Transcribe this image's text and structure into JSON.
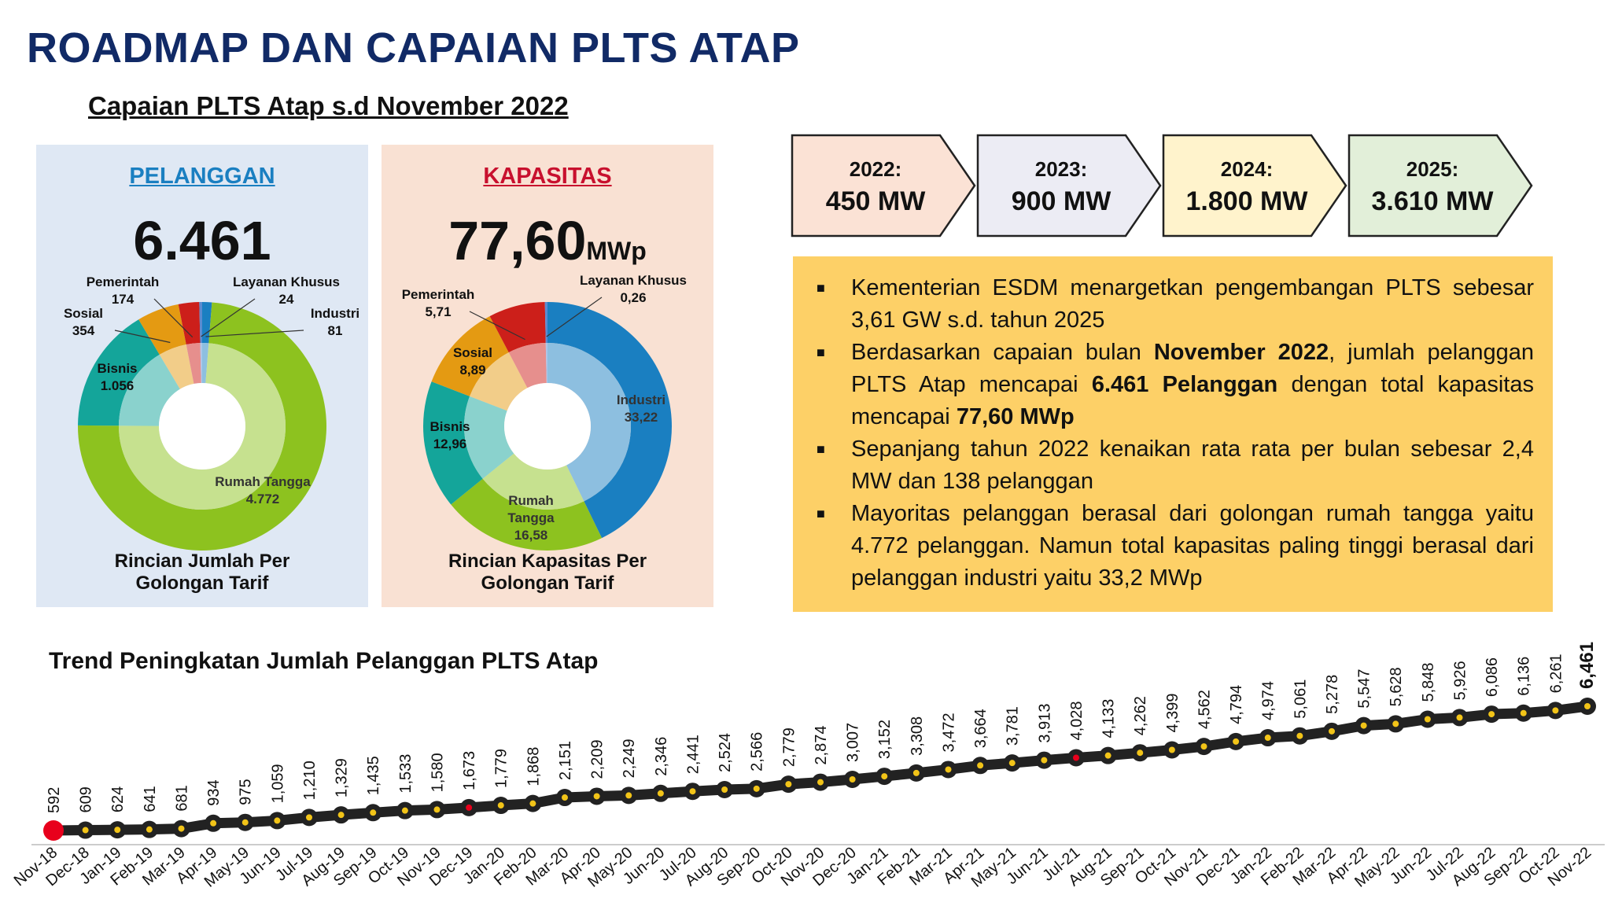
{
  "title": "ROADMAP DAN CAPAIAN PLTS ATAP",
  "subtitle": "Capaian PLTS Atap s.d November 2022",
  "colors": {
    "title": "#112a66",
    "pelanggan_head": "#1a7fc1",
    "kapasitas_head": "#c8102e",
    "industri": "#1a7fc1",
    "rumah_tangga": "#8dc21f",
    "bisnis": "#14a59a",
    "sosial": "#e49a12",
    "pemerintah": "#cc1f1a",
    "layanan_khusus": "#5b8bd0",
    "notes_bg": "#fdd067"
  },
  "panels": {
    "pelanggan": {
      "heading": "PELANGGAN",
      "total": "6.461",
      "caption_line1": "Rincian Jumlah Per",
      "caption_line2": "Golongan Tarif"
    },
    "kapasitas": {
      "heading": "KAPASITAS",
      "total": "77,60",
      "unit": "MWp",
      "caption_line1": "Rincian Kapasitas Per",
      "caption_line2": "Golongan Tarif"
    }
  },
  "roadmap": [
    {
      "year": "2022:",
      "value": "450 MW",
      "color": "#fbe2d5"
    },
    {
      "year": "2023:",
      "value": "900 MW",
      "color": "#ececf4"
    },
    {
      "year": "2024:",
      "value": "1.800 MW",
      "color": "#fff3cc"
    },
    {
      "year": "2025:",
      "value": "3.610 MW",
      "color": "#e2efd9"
    }
  ],
  "notes": [
    {
      "parts": [
        {
          "t": "Kementerian ESDM menargetkan pengembangan PLTS sebesar 3,61 GW s.d. tahun 2025",
          "b": false
        }
      ]
    },
    {
      "parts": [
        {
          "t": "Berdasarkan capaian bulan ",
          "b": false
        },
        {
          "t": "November 2022",
          "b": true
        },
        {
          "t": ", jumlah pelanggan PLTS Atap mencapai ",
          "b": false
        },
        {
          "t": "6.461 Pelanggan",
          "b": true
        },
        {
          "t": " dengan total kapasitas mencapai ",
          "b": false
        },
        {
          "t": "77,60 MWp",
          "b": true
        }
      ]
    },
    {
      "parts": [
        {
          "t": "Sepanjang tahun 2022 kenaikan rata rata per bulan sebesar 2,4 MW dan 138 pelanggan",
          "b": false
        }
      ]
    },
    {
      "parts": [
        {
          "t": "Mayoritas pelanggan berasal dari golongan rumah tangga yaitu 4.772 pelanggan. Namun total kapasitas paling tinggi berasal dari pelanggan industri yaitu 33,2 MWp",
          "b": false
        }
      ]
    }
  ],
  "chart_data": [
    {
      "type": "pie",
      "variant": "donut",
      "chart": "pelanggan",
      "slices": [
        {
          "key": "industri",
          "label": "Industri",
          "value": 81,
          "display": "81"
        },
        {
          "key": "rumah_tangga",
          "label": "Rumah Tangga",
          "value": 4772,
          "display": "4.772"
        },
        {
          "key": "bisnis",
          "label": "Bisnis",
          "value": 1056,
          "display": "1.056"
        },
        {
          "key": "sosial",
          "label": "Sosial",
          "value": 354,
          "display": "354"
        },
        {
          "key": "pemerintah",
          "label": "Pemerintah",
          "value": 174,
          "display": "174"
        },
        {
          "key": "layanan_khusus",
          "label": "Layanan Khusus",
          "value": 24,
          "display": "24"
        }
      ]
    },
    {
      "type": "pie",
      "variant": "donut",
      "chart": "kapasitas",
      "slices": [
        {
          "key": "industri",
          "label": "Industri",
          "value": 33.22,
          "display": "33,22"
        },
        {
          "key": "rumah_tangga",
          "label": "Rumah Tangga",
          "value": 16.58,
          "display": "16,58"
        },
        {
          "key": "bisnis",
          "label": "Bisnis",
          "value": 12.96,
          "display": "12,96"
        },
        {
          "key": "sosial",
          "label": "Sosial",
          "value": 8.89,
          "display": "8,89"
        },
        {
          "key": "pemerintah",
          "label": "Pemerintah",
          "value": 5.71,
          "display": "5,71"
        },
        {
          "key": "layanan_khusus",
          "label": "Layanan Khusus",
          "value": 0.26,
          "display": "0,26"
        }
      ]
    },
    {
      "type": "line",
      "chart": "trend",
      "title": "Trend Peningkatan Jumlah Pelanggan PLTS Atap",
      "categories": [
        "Nov-18",
        "Dec-18",
        "Jan-19",
        "Feb-19",
        "Mar-19",
        "Apr-19",
        "May-19",
        "Jun-19",
        "Jul-19",
        "Aug-19",
        "Sep-19",
        "Oct-19",
        "Nov-19",
        "Dec-19",
        "Jan-20",
        "Feb-20",
        "Mar-20",
        "Apr-20",
        "May-20",
        "Jun-20",
        "Jul-20",
        "Aug-20",
        "Sep-20",
        "Oct-20",
        "Nov-20",
        "Dec-20",
        "Jan-21",
        "Feb-21",
        "Mar-21",
        "Apr-21",
        "May-21",
        "Jun-21",
        "Jul-21",
        "Aug-21",
        "Sep-21",
        "Oct-21",
        "Nov-21",
        "Dec-21",
        "Jan-22",
        "Feb-22",
        "Mar-22",
        "Apr-22",
        "May-22",
        "Jun-22",
        "Jul-22",
        "Aug-22",
        "Sep-22",
        "Oct-22",
        "Nov-22"
      ],
      "values": [
        592,
        609,
        624,
        641,
        681,
        934,
        975,
        1059,
        1210,
        1329,
        1435,
        1533,
        1580,
        1673,
        1779,
        1868,
        2151,
        2209,
        2249,
        2346,
        2441,
        2524,
        2566,
        2779,
        2874,
        3007,
        3152,
        3308,
        3472,
        3664,
        3781,
        3913,
        4028,
        4133,
        4262,
        4399,
        4562,
        4794,
        4974,
        5061,
        5278,
        5547,
        5628,
        5848,
        5926,
        6086,
        6136,
        6261,
        6461
      ],
      "labels": [
        "592",
        "609",
        "624",
        "641",
        "681",
        "934",
        "975",
        "1,059",
        "1,210",
        "1,329",
        "1,435",
        "1,533",
        "1,580",
        "1,673",
        "1,779",
        "1,868",
        "2,151",
        "2,209",
        "2,249",
        "2,346",
        "2,441",
        "2,524",
        "2,566",
        "2,779",
        "2,874",
        "3,007",
        "3,152",
        "3,308",
        "3,472",
        "3,664",
        "3,781",
        "3,913",
        "4,028",
        "4,133",
        "4,262",
        "4,399",
        "4,562",
        "4,794",
        "4,974",
        "5,061",
        "5,278",
        "5,547",
        "5,628",
        "5,848",
        "5,926",
        "6,086",
        "6,136",
        "6,261",
        "6,461"
      ],
      "highlight_indices": [
        0,
        13,
        32
      ],
      "line_color": "#222222",
      "marker_color": "#f2c418",
      "highlight_color": "#e8001c"
    }
  ]
}
